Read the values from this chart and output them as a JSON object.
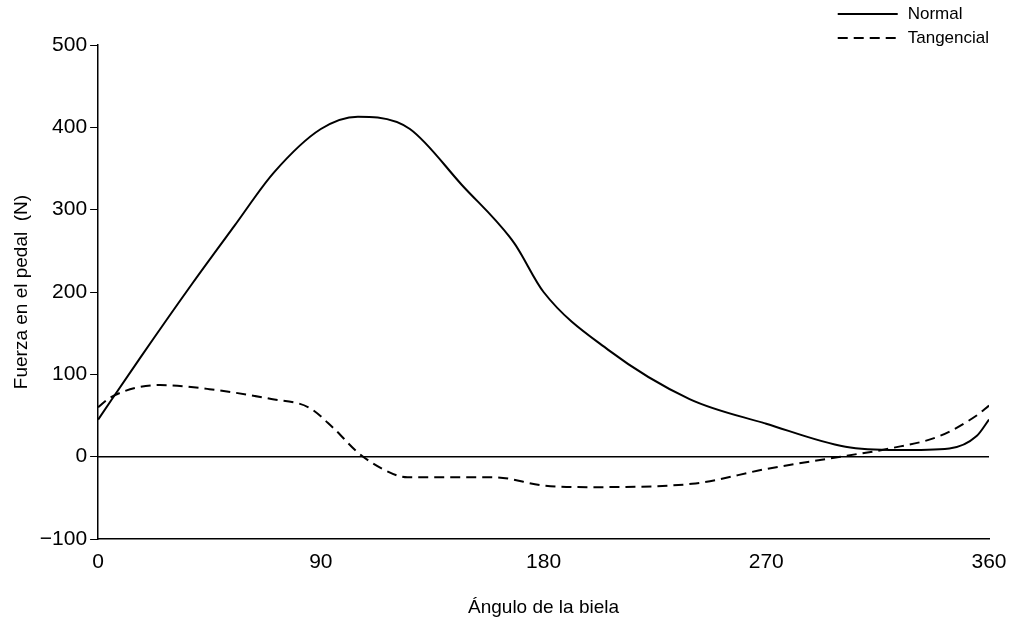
{
  "chart_data": {
    "type": "line",
    "xlabel": "Ángulo de la biela",
    "ylabel": "Fuerza en el pedal  (N)",
    "xlim": [
      0,
      360
    ],
    "xticks": [
      0,
      90,
      180,
      270,
      360
    ],
    "ylim": [
      -100,
      500
    ],
    "yticks": [
      {
        "value": -100,
        "label": "−100"
      },
      0,
      100,
      200,
      300,
      400,
      500
    ],
    "grid": false,
    "legend": "top right",
    "marker": "none",
    "ref_lines": [
      {
        "axis": "y",
        "value": 0,
        "color": "#000000",
        "line_style": "solid"
      }
    ],
    "series": [
      {
        "name": "Normal",
        "color": "#000000",
        "line_style": "solid",
        "x": [
          0,
          17,
          38,
          55,
          71,
          90,
          105,
          113,
          126,
          147,
          168,
          180,
          206,
          239,
          270,
          302,
          323,
          344,
          355,
          360
        ],
        "values": [
          45,
          120,
          210,
          280,
          345,
          398,
          413,
          412,
          398,
          330,
          260,
          200,
          130,
          70,
          40,
          12,
          8,
          10,
          25,
          45
        ]
      },
      {
        "name": "Tangencial",
        "color": "#000000",
        "line_style": "dashed",
        "x": [
          0,
          5,
          25,
          45,
          70,
          85,
          95,
          105,
          115,
          125,
          160,
          180,
          200,
          240,
          270,
          300,
          320,
          340,
          355,
          360
        ],
        "values": [
          60,
          72,
          87,
          82,
          70,
          60,
          35,
          5,
          -15,
          -25,
          -25,
          -35,
          -37,
          -33,
          -15,
          0,
          10,
          25,
          50,
          62
        ]
      }
    ]
  }
}
